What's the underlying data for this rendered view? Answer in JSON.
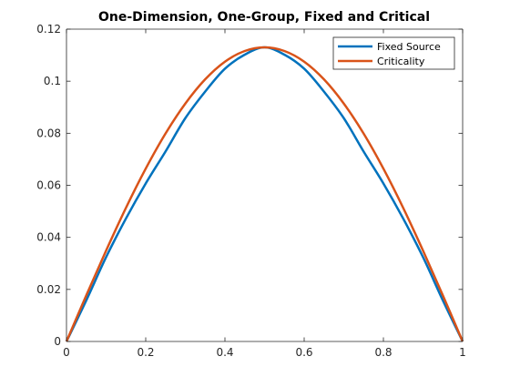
{
  "chart_data": {
    "type": "line",
    "title": "One-Dimension, One-Group, Fixed and Critical",
    "xlabel": "",
    "ylabel": "",
    "xlim": [
      0,
      1
    ],
    "ylim": [
      0,
      0.12
    ],
    "x_ticks": [
      0,
      0.2,
      0.4,
      0.6,
      0.8,
      1
    ],
    "x_tick_labels": [
      "0",
      "0.2",
      "0.4",
      "0.6",
      "0.8",
      "1"
    ],
    "y_ticks": [
      0,
      0.02,
      0.04,
      0.06,
      0.08,
      0.1,
      0.12
    ],
    "y_tick_labels": [
      "0",
      "0.02",
      "0.04",
      "0.06",
      "0.08",
      "0.1",
      "0.12"
    ],
    "grid": false,
    "legend_position": "top-right",
    "x": [
      0,
      0.05,
      0.1,
      0.15,
      0.2,
      0.25,
      0.3,
      0.35,
      0.4,
      0.45,
      0.5,
      0.55,
      0.6,
      0.65,
      0.7,
      0.75,
      0.8,
      0.85,
      0.9,
      0.95,
      1
    ],
    "series": [
      {
        "name": "Fixed Source",
        "color": "#0072BD",
        "values": [
          0,
          0.0158,
          0.0324,
          0.0472,
          0.0607,
          0.073,
          0.0858,
          0.096,
          0.1048,
          0.1102,
          0.113,
          0.1102,
          0.1048,
          0.096,
          0.0858,
          0.073,
          0.0607,
          0.0472,
          0.0324,
          0.0158,
          0
        ]
      },
      {
        "name": "Criticality",
        "color": "#D95319",
        "values": [
          0,
          0.0177,
          0.0349,
          0.0513,
          0.0664,
          0.0799,
          0.0914,
          0.1007,
          0.1075,
          0.1116,
          0.113,
          0.1116,
          0.1075,
          0.1007,
          0.0914,
          0.0799,
          0.0664,
          0.0513,
          0.0349,
          0.0177,
          0
        ]
      }
    ]
  }
}
